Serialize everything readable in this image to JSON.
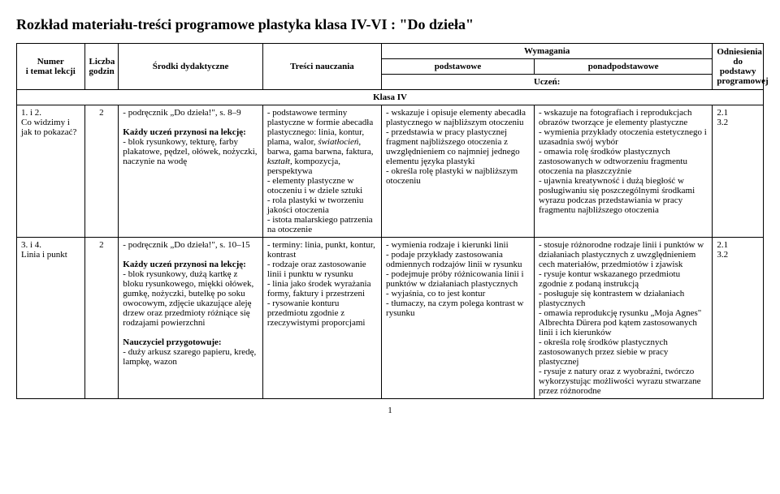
{
  "title": "Rozkład materiału-treści programowe plastyka klasa IV-VI : \"Do dzieła\"",
  "headers": {
    "numer": "Numer\ni temat lekcji",
    "liczba": "Liczba\ngodzin",
    "srodki": "Środki dydaktyczne",
    "tresci": "Treści nauczania",
    "wymagania": "Wymagania",
    "podstawowe": "podstawowe",
    "ponadpodstawowe": "ponadpodstawowe",
    "odniesienia": "Odniesienia do podstawy programowej",
    "uczen": "Uczeń:"
  },
  "section": "Klasa IV",
  "rows": [
    {
      "numer": "1. i 2.\nCo widzimy i jak to pokazać?",
      "godzin": "2",
      "srodki": "- podręcznik „Do dzieła!\", s. 8–9\n\nKażdy uczeń przynosi na lekcję:\n- blok rysunkowy, tekturę, farby plakatowe, pędzel, ołówek, nożyczki, naczynie na wodę",
      "tresci": "- podstawowe terminy plastyczne w formie abecadła plastycznego: linia, kontur, plama, walor, światłocień, barwa, gama barwna, faktura, kształt, kompozycja, perspektywa\n- elementy plastyczne w otoczeniu i w dziele sztuki\n- rola plastyki w tworzeniu jakości otoczenia\n- istota malarskiego patrzenia na otoczenie",
      "podstawowe": "- wskazuje i opisuje elementy abecadła plastycznego w najbliższym otoczeniu\n- przedstawia w pracy plastycznej fragment najbliższego otoczenia z uwzględnieniem co najmniej jednego elementu języka plastyki\n- określa rolę plastyki w najbliższym otoczeniu",
      "ponadpodstawowe": "- wskazuje na fotografiach i reprodukcjach obrazów tworzące je elementy plastyczne\n- wymienia przykłady otoczenia estetycznego i uzasadnia swój wybór\n- omawia rolę środków plastycznych zastosowanych w odtworzeniu fragmentu otoczenia na płaszczyźnie\n- ujawnia kreatywność i dużą biegłość w posługiwaniu się poszczególnymi środkami wyrazu podczas przedstawiania w pracy fragmentu najbliższego otoczenia",
      "odn": "2.1\n3.2"
    },
    {
      "numer": "3. i 4.\nLinia i punkt",
      "godzin": "2",
      "srodki": "- podręcznik „Do dzieła!\", s. 10–15\n\nKażdy uczeń przynosi na lekcję:\n- blok rysunkowy, dużą kartkę z bloku rysunkowego, miękki ołówek, gumkę, nożyczki, butelkę po soku owocowym, zdjęcie ukazujące aleję drzew oraz przedmioty różniące się rodzajami powierzchni\n\nNauczyciel przygotowuje:\n- duży arkusz szarego papieru, kredę, lampkę, wazon",
      "tresci": "- terminy: linia, punkt, kontur, kontrast\n- rodzaje oraz zastosowanie linii i punktu w rysunku\n- linia jako środek wyrażania formy, faktury i przestrzeni\n- rysowanie konturu przedmiotu zgodnie z rzeczywistymi proporcjami",
      "podstawowe": "- wymienia rodzaje i kierunki linii\n- podaje przykłady zastosowania odmiennych rodzajów linii w rysunku\n- podejmuje próby różnicowania linii i punktów w działaniach plastycznych\n- wyjaśnia, co to jest kontur\n- tłumaczy, na czym polega kontrast w rysunku",
      "ponadpodstawowe": "- stosuje różnorodne rodzaje linii i punktów w działaniach plastycznych z uwzględnieniem cech materiałów, przedmiotów i zjawisk\n- rysuje kontur wskazanego przedmiotu zgodnie z podaną instrukcją\n- posługuje się kontrastem w działaniach plastycznych\n- omawia reprodukcję rysunku „Moja Agnes\" Albrechta Dürera pod kątem zastosowanych linii i ich kierunków\n- określa rolę środków plastycznych zastosowanych przez siebie w pracy plastycznej\n- rysuje z natury oraz z wyobraźni, twórczo wykorzystując możliwości wyrazu stwarzane przez różnorodne",
      "odn": "2.1\n3.2"
    }
  ],
  "pageNumber": "1"
}
